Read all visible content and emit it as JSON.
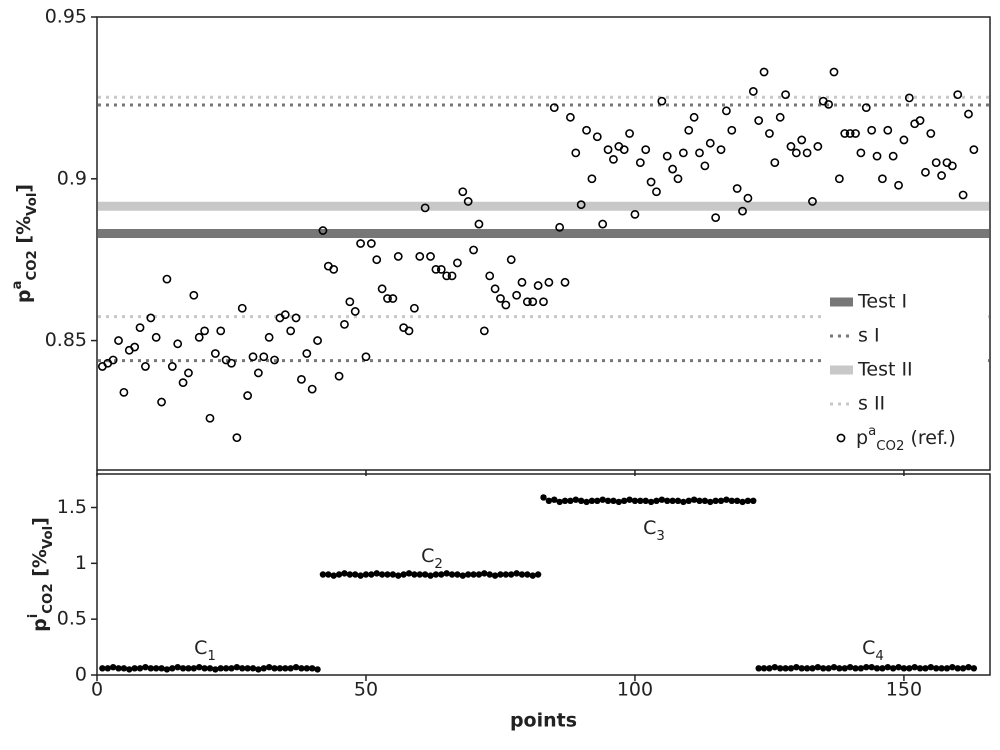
{
  "chart_data": [
    {
      "type": "scatter",
      "ylabel": {
        "text": "p",
        "sup": "a",
        "sub": "CO2",
        "unit": " [%",
        "unit_sub": "Vol",
        "unit_end": "]"
      },
      "xlim": [
        0,
        166
      ],
      "xticks": [
        0,
        50,
        100,
        150
      ],
      "ylim": [
        0.81,
        0.95
      ],
      "yticks": [
        0.85,
        0.9,
        0.95
      ],
      "legend": "lower right",
      "hlines": [
        {
          "name": "Test I",
          "color": "#777777",
          "style": "solid",
          "values": [
            0.8831
          ]
        },
        {
          "name": "s I",
          "color": "#777777",
          "style": "dotted",
          "values": [
            0.8438,
            0.9228
          ]
        },
        {
          "name": "Test II",
          "color": "#c8c8c8",
          "style": "solid",
          "values": [
            0.8915
          ]
        },
        {
          "name": "s II",
          "color": "#c8c8c8",
          "style": "dotted",
          "values": [
            0.8574,
            0.9252
          ]
        }
      ],
      "series": [
        {
          "name": "p",
          "name_sup": "a",
          "name_sub": "CO2",
          "name_suffix": " (ref.)",
          "color": "#000000",
          "marker": "open-circle",
          "x": [
            1,
            2,
            3,
            4,
            5,
            6,
            7,
            8,
            9,
            10,
            11,
            12,
            13,
            14,
            15,
            16,
            17,
            18,
            19,
            20,
            21,
            22,
            23,
            24,
            25,
            26,
            27,
            28,
            29,
            30,
            31,
            32,
            33,
            34,
            35,
            36,
            37,
            38,
            39,
            40,
            41,
            42,
            43,
            44,
            45,
            46,
            47,
            48,
            49,
            50,
            51,
            52,
            53,
            54,
            55,
            56,
            57,
            58,
            59,
            60,
            61,
            62,
            63,
            64,
            65,
            66,
            67,
            68,
            69,
            70,
            71,
            72,
            73,
            74,
            75,
            76,
            77,
            78,
            79,
            80,
            81,
            82,
            83,
            84,
            85,
            86,
            87,
            88,
            89,
            90,
            91,
            92,
            93,
            94,
            95,
            96,
            97,
            98,
            99,
            100,
            101,
            102,
            103,
            104,
            105,
            106,
            107,
            108,
            109,
            110,
            111,
            112,
            113,
            114,
            115,
            116,
            117,
            118,
            119,
            120,
            121,
            122,
            123,
            124,
            125,
            126,
            127,
            128,
            129,
            130,
            131,
            132,
            133,
            134,
            135,
            136,
            137,
            138,
            139,
            140,
            141,
            142,
            143,
            144,
            145,
            146,
            147,
            148,
            149,
            150,
            151,
            152,
            153,
            154,
            155,
            156,
            157,
            158,
            159,
            160,
            161,
            162,
            163
          ],
          "values": [
            0.842,
            0.843,
            0.844,
            0.85,
            0.834,
            0.847,
            0.848,
            0.854,
            0.842,
            0.857,
            0.851,
            0.831,
            0.869,
            0.842,
            0.849,
            0.837,
            0.84,
            0.864,
            0.851,
            0.853,
            0.826,
            0.846,
            0.853,
            0.844,
            0.843,
            0.82,
            0.86,
            0.833,
            0.845,
            0.84,
            0.845,
            0.851,
            0.844,
            0.857,
            0.858,
            0.853,
            0.857,
            0.838,
            0.846,
            0.835,
            0.85,
            0.884,
            0.873,
            0.872,
            0.839,
            0.855,
            0.862,
            0.859,
            0.88,
            0.845,
            0.88,
            0.875,
            0.866,
            0.863,
            0.863,
            0.876,
            0.854,
            0.853,
            0.86,
            0.876,
            0.891,
            0.876,
            0.872,
            0.872,
            0.87,
            0.87,
            0.874,
            0.896,
            0.893,
            0.878,
            0.886,
            0.853,
            0.87,
            0.866,
            0.863,
            0.861,
            0.875,
            0.864,
            0.868,
            0.862,
            0.862,
            0.867,
            0.862,
            0.868,
            0.922,
            0.885,
            0.868,
            0.919,
            0.908,
            0.892,
            0.915,
            0.9,
            0.913,
            0.886,
            0.909,
            0.906,
            0.91,
            0.909,
            0.914,
            0.889,
            0.905,
            0.909,
            0.899,
            0.896,
            0.924,
            0.907,
            0.903,
            0.9,
            0.908,
            0.915,
            0.919,
            0.908,
            0.904,
            0.911,
            0.888,
            0.909,
            0.921,
            0.915,
            0.897,
            0.89,
            0.894,
            0.927,
            0.918,
            0.933,
            0.914,
            0.905,
            0.919,
            0.926,
            0.91,
            0.908,
            0.912,
            0.908,
            0.893,
            0.91,
            0.924,
            0.923,
            0.933,
            0.9,
            0.914,
            0.914,
            0.914,
            0.908,
            0.922,
            0.915,
            0.907,
            0.9,
            0.915,
            0.907,
            0.898,
            0.912,
            0.925,
            0.917,
            0.918,
            0.902,
            0.914,
            0.905,
            0.901,
            0.905,
            0.904,
            0.926,
            0.895,
            0.92,
            0.909
          ]
        }
      ]
    },
    {
      "type": "scatter",
      "xlabel": "points",
      "ylabel": {
        "text": "p",
        "sup": "i",
        "sub": "CO2",
        "unit": " [%",
        "unit_sub": "Vol",
        "unit_end": "]"
      },
      "xlim": [
        0,
        166
      ],
      "xticks": [
        0,
        50,
        100,
        150
      ],
      "ylim": [
        0,
        1.8
      ],
      "yticks": [
        0,
        0.5,
        1,
        1.5
      ],
      "annotations": [
        {
          "text": "C",
          "sub": "1"
        },
        {
          "text": "C",
          "sub": "2"
        },
        {
          "text": "C",
          "sub": "3"
        },
        {
          "text": "C",
          "sub": "4"
        }
      ],
      "series": [
        {
          "color": "#000000",
          "marker": "filled-circle",
          "x": [
            1,
            2,
            3,
            4,
            5,
            6,
            7,
            8,
            9,
            10,
            11,
            12,
            13,
            14,
            15,
            16,
            17,
            18,
            19,
            20,
            21,
            22,
            23,
            24,
            25,
            26,
            27,
            28,
            29,
            30,
            31,
            32,
            33,
            34,
            35,
            36,
            37,
            38,
            39,
            40,
            41,
            42,
            43,
            44,
            45,
            46,
            47,
            48,
            49,
            50,
            51,
            52,
            53,
            54,
            55,
            56,
            57,
            58,
            59,
            60,
            61,
            62,
            63,
            64,
            65,
            66,
            67,
            68,
            69,
            70,
            71,
            72,
            73,
            74,
            75,
            76,
            77,
            78,
            79,
            80,
            81,
            82,
            83,
            84,
            85,
            86,
            87,
            88,
            89,
            90,
            91,
            92,
            93,
            94,
            95,
            96,
            97,
            98,
            99,
            100,
            101,
            102,
            103,
            104,
            105,
            106,
            107,
            108,
            109,
            110,
            111,
            112,
            113,
            114,
            115,
            116,
            117,
            118,
            119,
            120,
            121,
            122,
            123,
            124,
            125,
            126,
            127,
            128,
            129,
            130,
            131,
            132,
            133,
            134,
            135,
            136,
            137,
            138,
            139,
            140,
            141,
            142,
            143,
            144,
            145,
            146,
            147,
            148,
            149,
            150,
            151,
            152,
            153,
            154,
            155,
            156,
            157,
            158,
            159,
            160,
            161,
            162,
            163
          ],
          "values": [
            0.06,
            0.06,
            0.07,
            0.06,
            0.06,
            0.05,
            0.06,
            0.06,
            0.07,
            0.06,
            0.06,
            0.06,
            0.05,
            0.06,
            0.07,
            0.06,
            0.06,
            0.06,
            0.07,
            0.06,
            0.06,
            0.05,
            0.06,
            0.06,
            0.06,
            0.07,
            0.06,
            0.06,
            0.06,
            0.05,
            0.06,
            0.07,
            0.06,
            0.06,
            0.06,
            0.06,
            0.07,
            0.06,
            0.06,
            0.06,
            0.05,
            0.9,
            0.9,
            0.89,
            0.9,
            0.91,
            0.9,
            0.9,
            0.89,
            0.9,
            0.9,
            0.91,
            0.9,
            0.9,
            0.9,
            0.89,
            0.9,
            0.91,
            0.9,
            0.9,
            0.9,
            0.89,
            0.9,
            0.9,
            0.91,
            0.9,
            0.9,
            0.89,
            0.9,
            0.9,
            0.9,
            0.91,
            0.9,
            0.89,
            0.9,
            0.9,
            0.9,
            0.91,
            0.9,
            0.9,
            0.89,
            0.9,
            1.59,
            1.56,
            1.57,
            1.55,
            1.56,
            1.56,
            1.57,
            1.56,
            1.55,
            1.56,
            1.56,
            1.57,
            1.56,
            1.56,
            1.55,
            1.56,
            1.57,
            1.56,
            1.56,
            1.56,
            1.55,
            1.56,
            1.57,
            1.56,
            1.56,
            1.56,
            1.55,
            1.56,
            1.57,
            1.56,
            1.56,
            1.55,
            1.56,
            1.56,
            1.57,
            1.56,
            1.56,
            1.55,
            1.56,
            1.56,
            0.06,
            0.06,
            0.06,
            0.07,
            0.06,
            0.06,
            0.06,
            0.07,
            0.06,
            0.06,
            0.06,
            0.07,
            0.06,
            0.06,
            0.07,
            0.06,
            0.06,
            0.07,
            0.06,
            0.06,
            0.07,
            0.07,
            0.06,
            0.06,
            0.07,
            0.06,
            0.07,
            0.06,
            0.06,
            0.07,
            0.06,
            0.06,
            0.07,
            0.06,
            0.06,
            0.06,
            0.07,
            0.06,
            0.06,
            0.07,
            0.06
          ]
        }
      ]
    }
  ]
}
